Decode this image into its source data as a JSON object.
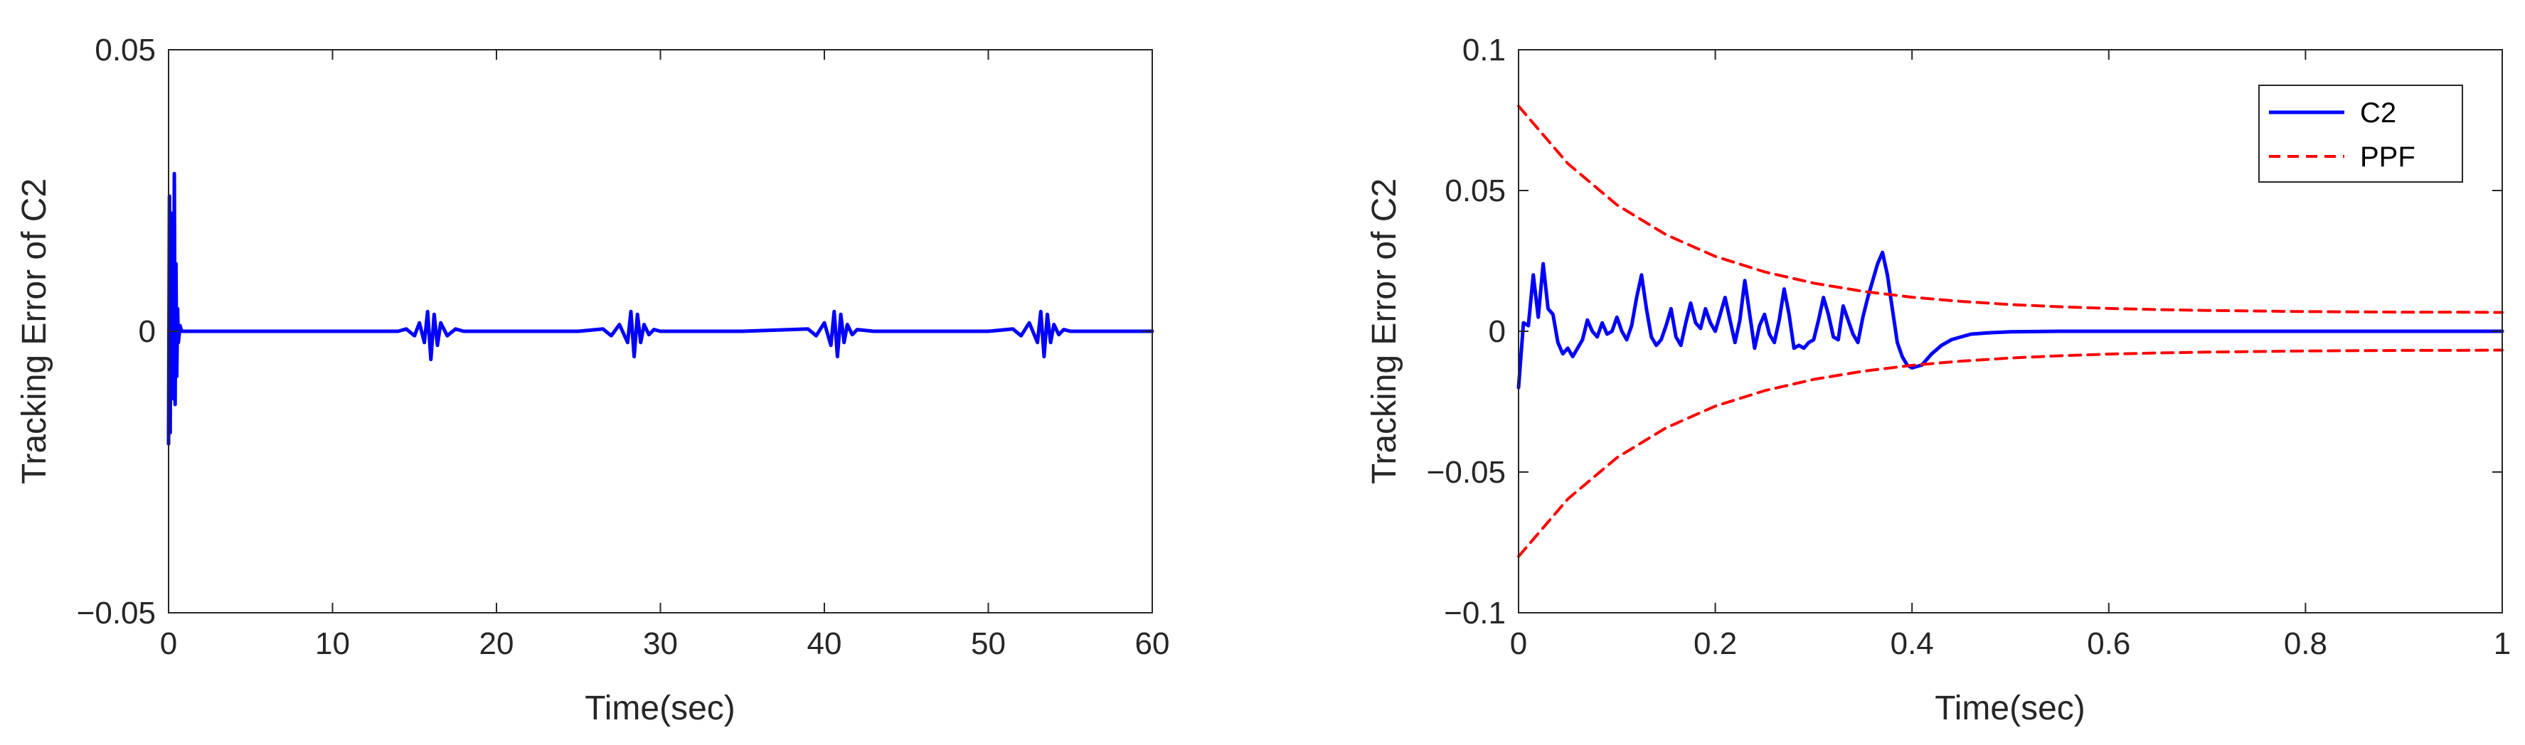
{
  "chart_data": [
    {
      "type": "line",
      "xlabel": "Time(sec)",
      "ylabel": "Tracking Error of C2",
      "xlim": [
        0,
        60
      ],
      "ylim": [
        -0.05,
        0.05
      ],
      "xticks": [
        0,
        10,
        20,
        30,
        40,
        50,
        60
      ],
      "xtick_labels": [
        "0",
        "10",
        "20",
        "30",
        "40",
        "50",
        "60"
      ],
      "yticks": [
        -0.05,
        0,
        0.05
      ],
      "ytick_labels": [
        "−0.05",
        "0",
        "0.05"
      ],
      "grid": false,
      "series": [
        {
          "color": "#0000ff",
          "style": "solid",
          "x": [
            0,
            0.05,
            0.1,
            0.15,
            0.2,
            0.25,
            0.3,
            0.35,
            0.4,
            0.45,
            0.5,
            0.55,
            0.6,
            0.7,
            0.8,
            1,
            2,
            5,
            10,
            14,
            14.5,
            15,
            15.3,
            15.6,
            15.8,
            16.0,
            16.2,
            16.4,
            16.6,
            17,
            17.5,
            18,
            20,
            25,
            26.5,
            27,
            27.5,
            28,
            28.2,
            28.4,
            28.6,
            28.8,
            29.0,
            29.3,
            29.6,
            30,
            31,
            35,
            39,
            39.5,
            40,
            40.4,
            40.6,
            40.8,
            41.0,
            41.2,
            41.4,
            41.7,
            42,
            43,
            45,
            50,
            51.5,
            52,
            52.5,
            53,
            53.2,
            53.4,
            53.6,
            53.8,
            54.0,
            54.3,
            54.6,
            55,
            56,
            60
          ],
          "y": [
            -0.02,
            0.024,
            -0.018,
            0.021,
            -0.01,
            0.02,
            -0.012,
            0.028,
            -0.013,
            0.012,
            -0.008,
            0.004,
            -0.002,
            0.001,
            0,
            0,
            0,
            0,
            0,
            0,
            0.0004,
            -0.0008,
            0.0015,
            -0.002,
            0.0035,
            -0.005,
            0.003,
            -0.0025,
            0.0015,
            -0.0008,
            0.0004,
            0,
            0,
            0,
            0.0004,
            -0.0008,
            0.0012,
            -0.002,
            0.0035,
            -0.0045,
            0.003,
            -0.002,
            0.0012,
            -0.0006,
            0.0003,
            0,
            0,
            0,
            0.0004,
            -0.0008,
            0.0015,
            -0.0025,
            0.0035,
            -0.0045,
            0.003,
            -0.002,
            0.0012,
            -0.0006,
            0.0003,
            0,
            0,
            0,
            0.0004,
            -0.0008,
            0.0015,
            -0.002,
            0.0035,
            -0.0045,
            0.003,
            -0.002,
            0.0012,
            -0.0006,
            0.0003,
            0,
            0,
            0
          ]
        }
      ]
    },
    {
      "type": "line",
      "xlabel": "Time(sec)",
      "ylabel": "Tracking Error of C2",
      "xlim": [
        0,
        1
      ],
      "ylim": [
        -0.1,
        0.1
      ],
      "xticks": [
        0,
        0.2,
        0.4,
        0.6,
        0.8,
        1
      ],
      "xtick_labels": [
        "0",
        "0.2",
        "0.4",
        "0.6",
        "0.8",
        "1"
      ],
      "yticks": [
        -0.1,
        -0.05,
        0,
        0.05,
        0.1
      ],
      "ytick_labels": [
        "−0.1",
        "−0.05",
        "0",
        "0.05",
        "0.1"
      ],
      "grid": false,
      "legend_position": "top-right",
      "series": [
        {
          "name": "C2",
          "color": "#0000ff",
          "style": "solid",
          "x": [
            0,
            0.005,
            0.01,
            0.015,
            0.02,
            0.025,
            0.03,
            0.035,
            0.04,
            0.045,
            0.05,
            0.055,
            0.06,
            0.065,
            0.07,
            0.075,
            0.08,
            0.085,
            0.09,
            0.095,
            0.1,
            0.105,
            0.11,
            0.115,
            0.12,
            0.125,
            0.13,
            0.135,
            0.14,
            0.145,
            0.15,
            0.155,
            0.16,
            0.165,
            0.17,
            0.175,
            0.18,
            0.185,
            0.19,
            0.195,
            0.2,
            0.205,
            0.21,
            0.215,
            0.22,
            0.225,
            0.23,
            0.235,
            0.24,
            0.245,
            0.25,
            0.255,
            0.26,
            0.265,
            0.27,
            0.275,
            0.28,
            0.285,
            0.29,
            0.295,
            0.3,
            0.305,
            0.31,
            0.315,
            0.32,
            0.325,
            0.33,
            0.335,
            0.34,
            0.345,
            0.35,
            0.355,
            0.36,
            0.365,
            0.37,
            0.375,
            0.38,
            0.385,
            0.39,
            0.395,
            0.4,
            0.41,
            0.42,
            0.43,
            0.44,
            0.45,
            0.46,
            0.48,
            0.5,
            0.55,
            0.6,
            0.7,
            0.8,
            0.9,
            1.0
          ],
          "y": [
            -0.02,
            0.003,
            0.002,
            0.02,
            0.005,
            0.024,
            0.008,
            0.006,
            -0.004,
            -0.008,
            -0.006,
            -0.009,
            -0.006,
            -0.003,
            0.004,
            0.0,
            -0.002,
            0.003,
            -0.001,
            0.0,
            0.005,
            0.0,
            -0.003,
            0.002,
            0.012,
            0.02,
            0.008,
            -0.002,
            -0.005,
            -0.003,
            0.002,
            0.008,
            -0.002,
            -0.005,
            0.003,
            0.01,
            0.003,
            0.001,
            0.008,
            0.003,
            0.0,
            0.006,
            0.012,
            0.004,
            -0.004,
            0.004,
            0.018,
            0.006,
            -0.006,
            0.002,
            0.006,
            -0.001,
            -0.004,
            0.004,
            0.015,
            0.006,
            -0.006,
            -0.005,
            -0.006,
            -0.004,
            -0.003,
            0.004,
            0.012,
            0.006,
            -0.002,
            -0.003,
            0.009,
            0.004,
            -0.001,
            -0.004,
            0.005,
            0.012,
            0.018,
            0.024,
            0.028,
            0.02,
            0.008,
            -0.004,
            -0.009,
            -0.012,
            -0.013,
            -0.012,
            -0.008,
            -0.005,
            -0.003,
            -0.002,
            -0.001,
            -0.0005,
            -0.0002,
            0.0,
            0.0,
            0.0,
            0.0,
            0.0,
            0.0
          ]
        },
        {
          "name": "PPF",
          "color": "#ff0000",
          "style": "dashed",
          "x": [
            0,
            0.05,
            0.1,
            0.15,
            0.2,
            0.25,
            0.3,
            0.35,
            0.4,
            0.45,
            0.5,
            0.55,
            0.6,
            0.65,
            0.7,
            0.75,
            0.8,
            0.85,
            0.9,
            0.95,
            1.0
          ],
          "y": [
            0.08,
            0.0596,
            0.0449,
            0.0343,
            0.0266,
            0.0211,
            0.0171,
            0.0142,
            0.0121,
            0.0106,
            0.0095,
            0.0087,
            0.0081,
            0.0077,
            0.0074,
            0.0072,
            0.007,
            0.0069,
            0.0068,
            0.0068,
            0.0067
          ]
        },
        {
          "name": "",
          "color": "#ff0000",
          "style": "dashed",
          "x": [
            0,
            0.05,
            0.1,
            0.15,
            0.2,
            0.25,
            0.3,
            0.35,
            0.4,
            0.45,
            0.5,
            0.55,
            0.6,
            0.65,
            0.7,
            0.75,
            0.8,
            0.85,
            0.9,
            0.95,
            1.0
          ],
          "y": [
            -0.08,
            -0.0596,
            -0.0449,
            -0.0343,
            -0.0266,
            -0.0211,
            -0.0171,
            -0.0142,
            -0.0121,
            -0.0106,
            -0.0095,
            -0.0087,
            -0.0081,
            -0.0077,
            -0.0074,
            -0.0072,
            -0.007,
            -0.0069,
            -0.0068,
            -0.0068,
            -0.0067
          ]
        }
      ]
    }
  ]
}
